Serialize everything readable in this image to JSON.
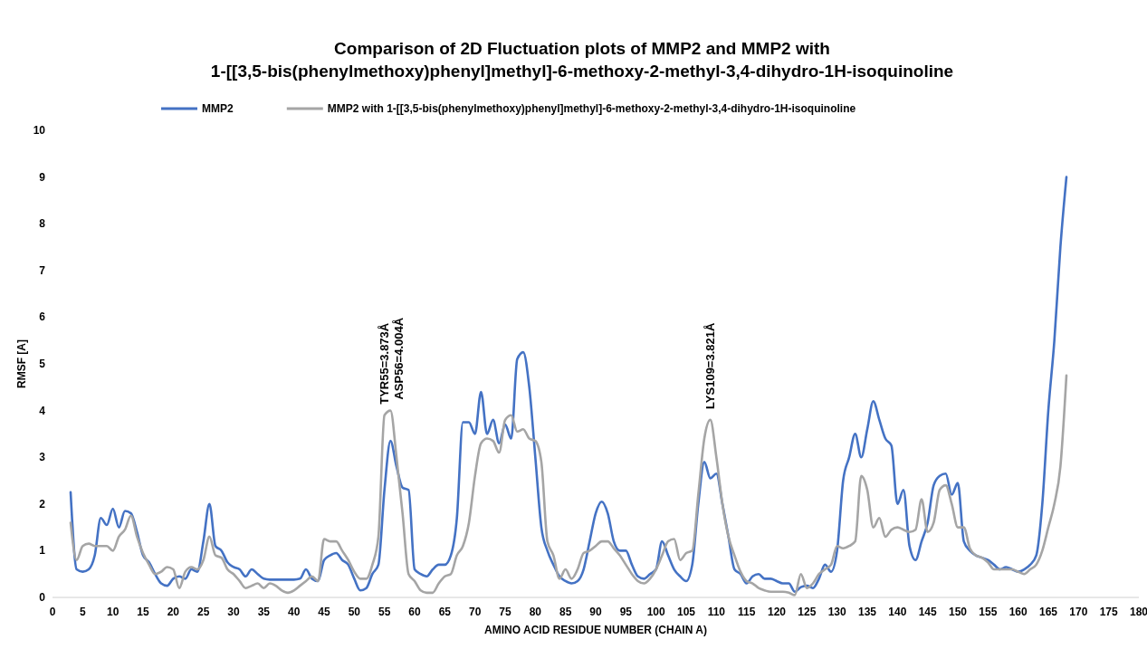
{
  "chart_data": {
    "type": "line",
    "title": "Comparison of 2D Fluctuation plots of MMP2 and MMP2 with 1-[[3,5-bis(phenylmethoxy)phenyl]methyl]-6-methoxy-2-methyl-3,4-dihydro-1H-isoquinoline",
    "xlabel": "AMINO ACID RESIDUE NUMBER (CHAIN A)",
    "ylabel": "RMSF [A]",
    "x": [
      3,
      4,
      5,
      6,
      7,
      8,
      9,
      10,
      11,
      12,
      13,
      14,
      15,
      16,
      17,
      18,
      19,
      20,
      21,
      22,
      23,
      24,
      25,
      26,
      27,
      28,
      29,
      30,
      31,
      32,
      33,
      34,
      35,
      36,
      37,
      38,
      39,
      40,
      41,
      42,
      43,
      44,
      45,
      46,
      47,
      48,
      49,
      50,
      51,
      52,
      53,
      54,
      55,
      56,
      57,
      58,
      59,
      60,
      61,
      62,
      63,
      64,
      65,
      66,
      67,
      68,
      69,
      70,
      71,
      72,
      73,
      74,
      75,
      76,
      77,
      78,
      79,
      80,
      81,
      82,
      83,
      84,
      85,
      86,
      87,
      88,
      89,
      90,
      91,
      92,
      93,
      94,
      95,
      96,
      97,
      98,
      99,
      100,
      101,
      102,
      103,
      104,
      105,
      106,
      107,
      108,
      109,
      110,
      111,
      112,
      113,
      114,
      115,
      116,
      117,
      118,
      119,
      120,
      121,
      122,
      123,
      124,
      125,
      126,
      127,
      128,
      129,
      130,
      131,
      132,
      133,
      134,
      135,
      136,
      137,
      138,
      139,
      140,
      141,
      142,
      143,
      144,
      145,
      146,
      147,
      148,
      149,
      150,
      151,
      152,
      153,
      154,
      155,
      156,
      157,
      158,
      159,
      160,
      161,
      162,
      163,
      164,
      165,
      166,
      167,
      168
    ],
    "series": [
      {
        "name": "MMP2",
        "color": "#4472c4",
        "values": [
          2.25,
          0.6,
          0.55,
          0.6,
          0.9,
          1.7,
          1.55,
          1.9,
          1.5,
          1.85,
          1.8,
          1.4,
          0.9,
          0.75,
          0.5,
          0.3,
          0.25,
          0.4,
          0.45,
          0.4,
          0.6,
          0.55,
          1.2,
          2.0,
          1.1,
          1.0,
          0.75,
          0.65,
          0.6,
          0.45,
          0.6,
          0.5,
          0.4,
          0.38,
          0.38,
          0.38,
          0.38,
          0.38,
          0.4,
          0.6,
          0.4,
          0.35,
          0.8,
          0.9,
          0.95,
          0.8,
          0.7,
          0.4,
          0.15,
          0.2,
          0.5,
          0.7,
          2.3,
          3.35,
          2.8,
          2.35,
          2.3,
          0.6,
          0.5,
          0.45,
          0.6,
          0.7,
          0.7,
          0.9,
          1.7,
          3.75,
          3.75,
          3.5,
          4.4,
          3.5,
          3.8,
          3.3,
          3.7,
          3.4,
          5.1,
          5.25,
          4.5,
          3.0,
          1.5,
          1.0,
          0.7,
          0.45,
          0.35,
          0.3,
          0.35,
          0.6,
          1.2,
          1.8,
          2.05,
          1.8,
          1.2,
          1.0,
          1.0,
          0.7,
          0.45,
          0.4,
          0.5,
          0.6,
          1.2,
          0.9,
          0.6,
          0.45,
          0.35,
          0.7,
          2.0,
          2.9,
          2.55,
          2.65,
          2.0,
          1.3,
          0.6,
          0.5,
          0.3,
          0.45,
          0.5,
          0.4,
          0.4,
          0.35,
          0.3,
          0.3,
          0.12,
          0.22,
          0.25,
          0.2,
          0.4,
          0.7,
          0.55,
          1.0,
          2.5,
          3.0,
          3.5,
          3.0,
          3.6,
          4.2,
          3.8,
          3.4,
          3.25,
          2.0,
          2.3,
          1.1,
          0.8,
          1.2,
          1.6,
          2.4,
          2.6,
          2.65,
          2.2,
          2.45,
          1.2,
          1.0,
          0.9,
          0.85,
          0.8,
          0.7,
          0.6,
          0.65,
          0.6,
          0.55,
          0.6,
          0.7,
          0.9,
          2.0,
          4.0,
          5.5,
          7.5,
          9.0
        ]
      },
      {
        "name": "MMP2 with 1-[[3,5-bis(phenylmethoxy)phenyl]methyl]-6-methoxy-2-methyl-3,4-dihydro-1H-isoquinoline",
        "color": "#a5a5a5",
        "values": [
          1.6,
          0.8,
          1.1,
          1.15,
          1.1,
          1.1,
          1.1,
          1.0,
          1.3,
          1.45,
          1.75,
          1.3,
          0.95,
          0.7,
          0.5,
          0.55,
          0.65,
          0.6,
          0.2,
          0.55,
          0.65,
          0.6,
          0.8,
          1.3,
          0.9,
          0.85,
          0.6,
          0.5,
          0.35,
          0.2,
          0.25,
          0.3,
          0.2,
          0.3,
          0.25,
          0.15,
          0.1,
          0.15,
          0.25,
          0.35,
          0.45,
          0.35,
          1.25,
          1.2,
          1.2,
          1.0,
          0.8,
          0.55,
          0.4,
          0.4,
          0.7,
          1.3,
          3.9,
          4.0,
          3.0,
          1.8,
          0.5,
          0.35,
          0.15,
          0.1,
          0.1,
          0.3,
          0.45,
          0.5,
          0.9,
          1.1,
          1.6,
          2.6,
          3.3,
          3.4,
          3.35,
          3.1,
          3.8,
          3.9,
          3.55,
          3.6,
          3.4,
          3.35,
          2.9,
          1.2,
          0.9,
          0.4,
          0.6,
          0.4,
          0.6,
          0.95,
          1.0,
          1.1,
          1.2,
          1.2,
          1.05,
          0.9,
          0.7,
          0.5,
          0.35,
          0.3,
          0.4,
          0.6,
          0.9,
          1.2,
          1.25,
          0.8,
          0.95,
          1.0,
          2.2,
          3.4,
          3.8,
          3.0,
          2.0,
          1.3,
          0.9,
          0.55,
          0.35,
          0.3,
          0.2,
          0.15,
          0.12,
          0.12,
          0.12,
          0.1,
          0.05,
          0.5,
          0.2,
          0.3,
          0.5,
          0.6,
          0.7,
          1.1,
          1.05,
          1.1,
          1.2,
          2.6,
          2.3,
          1.5,
          1.7,
          1.3,
          1.45,
          1.5,
          1.45,
          1.4,
          1.45,
          2.1,
          1.4,
          1.6,
          2.3,
          2.4,
          2.0,
          1.5,
          1.5,
          1.05,
          0.9,
          0.85,
          0.75,
          0.6,
          0.6,
          0.6,
          0.6,
          0.55,
          0.5,
          0.6,
          0.7,
          1.0,
          1.5,
          2.0,
          2.8,
          4.75
        ]
      }
    ],
    "annotations": [
      {
        "text": "TYR55=3.873Å",
        "x": 55,
        "y": 3.9
      },
      {
        "text": "ASP56=4.004Å",
        "x": 56,
        "y": 4.0
      },
      {
        "text": "LYS109=3.821Å",
        "x": 109,
        "y": 3.8
      }
    ],
    "xlim": [
      0,
      180
    ],
    "xticks": [
      0,
      5,
      10,
      15,
      20,
      25,
      30,
      35,
      40,
      45,
      50,
      55,
      60,
      65,
      70,
      75,
      80,
      85,
      90,
      95,
      100,
      105,
      110,
      115,
      120,
      125,
      130,
      135,
      140,
      145,
      150,
      155,
      160,
      165,
      170,
      175,
      180
    ],
    "ylim": [
      0,
      10
    ],
    "yticks": [
      0,
      1,
      2,
      3,
      4,
      5,
      6,
      7,
      8,
      9,
      10
    ],
    "legend": "top",
    "line_style": "solid"
  }
}
